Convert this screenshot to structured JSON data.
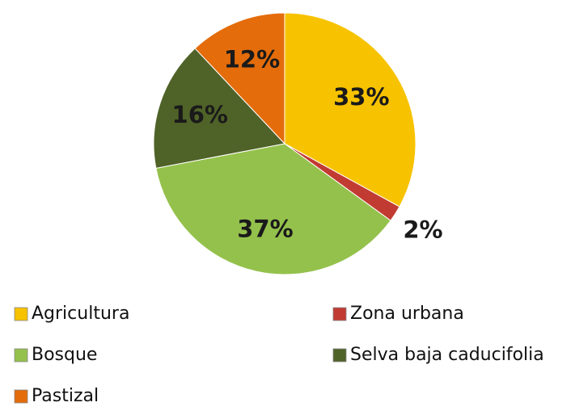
{
  "chart_data": {
    "type": "pie",
    "categories": [
      "Agricultura",
      "Zona urbana",
      "Bosque",
      "Selva baja caducifolia",
      "Pastizal"
    ],
    "values": [
      33,
      2,
      37,
      16,
      12
    ],
    "value_labels": [
      "33%",
      "2%",
      "37%",
      "16%",
      "12%"
    ],
    "colors": [
      "#f7c200",
      "#c23b32",
      "#94c14c",
      "#4f6228",
      "#e46c0a"
    ],
    "legend": "bottom"
  }
}
